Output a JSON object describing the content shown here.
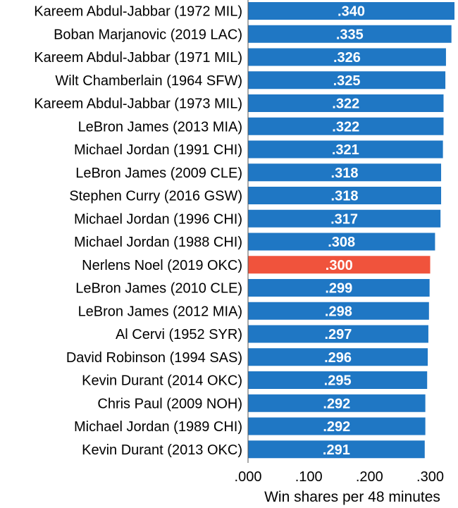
{
  "chart_data": {
    "type": "bar",
    "orientation": "horizontal",
    "title": "",
    "xlabel": "Win shares per 48 minutes",
    "ylabel": "",
    "xlim": [
      0,
      0.34
    ],
    "x_ticks": [
      0.0,
      0.1,
      0.2,
      0.3
    ],
    "x_tick_labels": [
      ".000",
      ".100",
      ".200",
      ".300"
    ],
    "grid": false,
    "colors": {
      "default": "#1f77c4",
      "highlight": "#f0533c"
    },
    "categories": [
      "Kareem Abdul-Jabbar (1972 MIL)",
      "Boban Marjanovic (2019 LAC)",
      "Kareem Abdul-Jabbar (1971 MIL)",
      "Wilt Chamberlain (1964 SFW)",
      "Kareem Abdul-Jabbar (1973 MIL)",
      "LeBron James (2013 MIA)",
      "Michael Jordan (1991 CHI)",
      "LeBron James (2009 CLE)",
      "Stephen Curry (2016 GSW)",
      "Michael Jordan (1996 CHI)",
      "Michael Jordan (1988 CHI)",
      "Nerlens Noel (2019 OKC)",
      "LeBron James (2010 CLE)",
      "LeBron James (2012 MIA)",
      "Al Cervi (1952 SYR)",
      "David Robinson (1994 SAS)",
      "Kevin Durant (2014 OKC)",
      "Chris Paul (2009 NOH)",
      "Michael Jordan (1989 CHI)",
      "Kevin Durant (2013 OKC)"
    ],
    "values": [
      0.34,
      0.335,
      0.326,
      0.325,
      0.322,
      0.322,
      0.321,
      0.318,
      0.318,
      0.317,
      0.308,
      0.3,
      0.299,
      0.298,
      0.297,
      0.296,
      0.295,
      0.292,
      0.292,
      0.291
    ],
    "value_labels": [
      ".340",
      ".335",
      ".326",
      ".325",
      ".322",
      ".322",
      ".321",
      ".318",
      ".318",
      ".317",
      ".308",
      ".300",
      ".299",
      ".298",
      ".297",
      ".296",
      ".295",
      ".292",
      ".292",
      ".291"
    ],
    "highlight_index": 11
  }
}
